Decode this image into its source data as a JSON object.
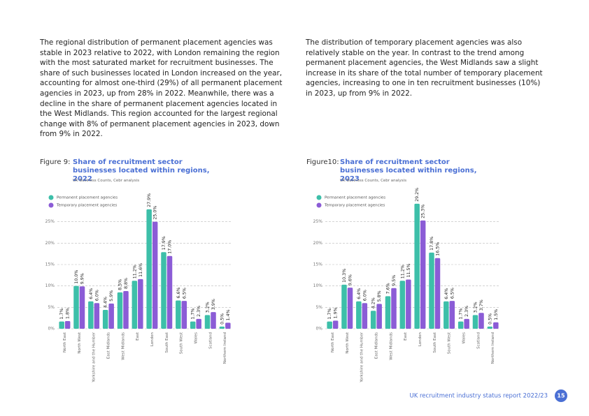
{
  "paragraphs": [
    "The regional distribution of permanent placement agencies was stable in 2023 relative to 2022, with London remaining the region with the most saturated market for recruitment businesses. The share of such businesses located in London increased on the year, accounting for almost one-third (29%) of all permanent placement agencies in 2023, up from 28% in 2022. Meanwhile, there was a decline in the share of permanent placement agencies located in the West Midlands. This region accounted for the largest regional change with 8% of permanent placement agencies in 2023, down from 9% in 2022.",
    "The distribution of temporary placement agencies was also relatively stable on the year. In contrast to the trend among permanent placement agencies, the West Midlands saw a slight increase in its share of the total number of temporary placement agencies, increasing to one in ten recruitment businesses (10%) in 2023, up from 9% in 2022."
  ],
  "footer": {
    "text": "UK recruitment industry status report 2022/23",
    "page": "15"
  },
  "chart_data": [
    {
      "type": "bar",
      "figure_label": "Figure 9:",
      "title": "Share of recruitment sector businesses located within regions, 2022",
      "subtitle": "UK Business Counts, Cebr analysis",
      "categories": [
        "North East",
        "North West",
        "Yorkshire and the Humber",
        "East Midlands",
        "West Midlands",
        "East",
        "London",
        "South East",
        "South West",
        "Wales",
        "Scotland",
        "Northern Ireland"
      ],
      "series": [
        {
          "name": "Permanent placement agencies",
          "color": "#3dbfa9",
          "values": [
            1.7,
            10.0,
            6.4,
            4.4,
            8.5,
            11.2,
            27.9,
            17.9,
            6.6,
            1.7,
            3.2,
            0.5
          ],
          "value_labels": [
            "1.7%",
            "10.0%",
            "6.4%",
            "4.4%",
            "8.5%",
            "11.2%",
            "27.9%",
            "17.9%",
            "6.6%",
            "1.7%",
            "3.2%",
            "0.5%"
          ]
        },
        {
          "name": "Temporary placement agencies",
          "color": "#8b5cd6",
          "values": [
            1.8,
            9.9,
            6.0,
            5.9,
            8.8,
            11.6,
            25.0,
            17.0,
            6.5,
            2.3,
            3.9,
            1.4
          ],
          "value_labels": [
            "1.8%",
            "9.9%",
            "6.0%",
            "5.9%",
            "8.8%",
            "11.6%",
            "25.0%",
            "17.0%",
            "6.5%",
            "2.3%",
            "3.9%",
            "1.4%"
          ]
        }
      ],
      "ylim": [
        0,
        30
      ],
      "yticks": [
        {
          "value": 0,
          "label": "0%"
        },
        {
          "value": 5,
          "label": "5%"
        },
        {
          "value": 10,
          "label": "10%"
        },
        {
          "value": 15,
          "label": "15%"
        },
        {
          "value": 20,
          "label": "20%"
        },
        {
          "value": 25,
          "label": "25%"
        }
      ],
      "grid": true,
      "legend": "top-left"
    },
    {
      "type": "bar",
      "figure_label": "Figure10:",
      "title": "Share of recruitment sector businesses located within regions, 2023",
      "subtitle": "UK Business Counts, Cebr analysis",
      "categories": [
        "North East",
        "North West",
        "Yorkshire and the Humber",
        "East Midlands",
        "West Midlands",
        "East",
        "London",
        "South East",
        "South West",
        "Wales",
        "Scotland",
        "Northern Ireland"
      ],
      "series": [
        {
          "name": "Permanent placement agencies",
          "color": "#3dbfa9",
          "values": [
            1.7,
            10.3,
            6.4,
            4.2,
            7.6,
            11.2,
            29.2,
            17.8,
            6.4,
            1.7,
            3.2,
            0.5
          ],
          "value_labels": [
            "1.7%",
            "10.3%",
            "6.4%",
            "4.2%",
            "7.6%",
            "11.2%",
            "29.2%",
            "17.8%",
            "6.4%",
            "1.7%",
            "3.2%",
            "0.5%"
          ]
        },
        {
          "name": "Temporary placement agencies",
          "color": "#8b5cd6",
          "values": [
            1.9,
            9.6,
            6.0,
            5.8,
            9.5,
            11.5,
            25.3,
            16.5,
            6.5,
            2.3,
            3.7,
            1.5
          ],
          "value_labels": [
            "1.9%",
            "9.6%",
            "6.0%",
            "5.8%",
            "9.5%",
            "11.5%",
            "25.3%",
            "16.5%",
            "6.5%",
            "2.3%",
            "3.7%",
            "1.5%"
          ]
        }
      ],
      "ylim": [
        0,
        30
      ],
      "yticks": [
        {
          "value": 0,
          "label": "0%"
        },
        {
          "value": 5,
          "label": "5%"
        },
        {
          "value": 10,
          "label": "10%"
        },
        {
          "value": 15,
          "label": "15%"
        },
        {
          "value": 20,
          "label": "20%"
        },
        {
          "value": 25,
          "label": "25%"
        }
      ],
      "grid": true,
      "legend": "top-left"
    }
  ]
}
